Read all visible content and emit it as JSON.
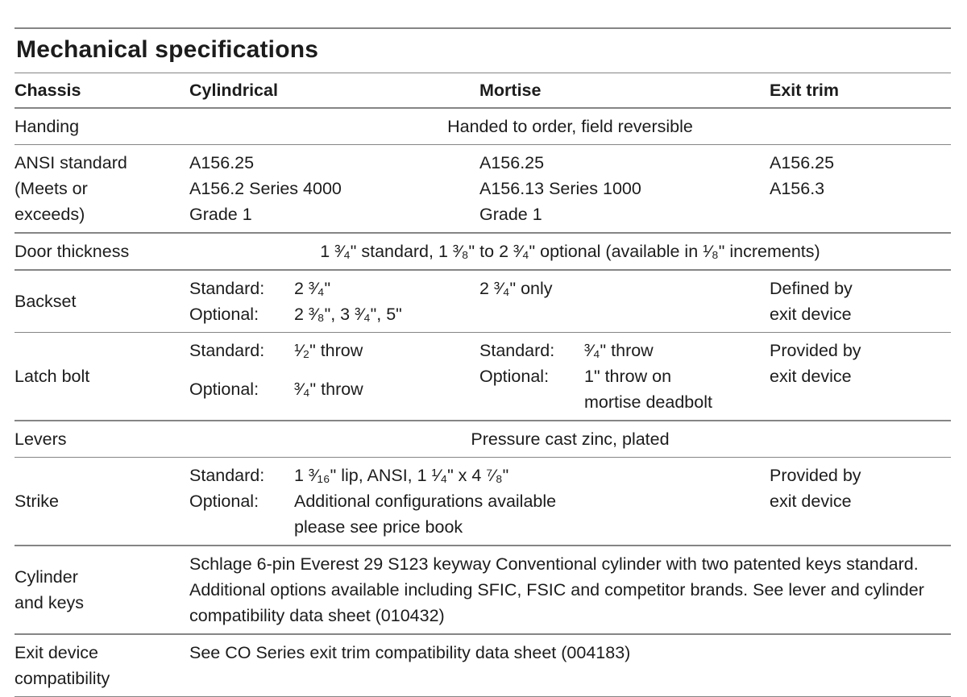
{
  "title": "Mechanical specifications",
  "columns": {
    "chassis": "Chassis",
    "cylindrical": "Cylindrical",
    "mortise": "Mortise",
    "exit_trim": "Exit trim"
  },
  "rows": {
    "handing": {
      "label": "Handing",
      "value": "Handed to order, field reversible"
    },
    "ansi_standard": {
      "label_lines": [
        "ANSI standard",
        "(Meets or",
        "exceeds)"
      ],
      "cylindrical": [
        "A156.25",
        "A156.2 Series 4000",
        "Grade 1"
      ],
      "mortise": [
        "A156.25",
        "A156.13 Series 1000",
        "Grade 1"
      ],
      "exit_trim": [
        "A156.25",
        "A156.3"
      ]
    },
    "door_thickness": {
      "label": "Door thickness",
      "value": "1 ³⁄₄\" standard, 1 ³⁄₈\" to 2 ³⁄₄\" optional (available in ¹⁄₈\" increments)"
    },
    "backset": {
      "label": "Backset",
      "cylindrical": [
        {
          "prefix": "Standard:",
          "text": "2 ³⁄₄\""
        },
        {
          "prefix": "Optional:",
          "text": "2 ³⁄₈\", 3 ³⁄₄\", 5\""
        }
      ],
      "mortise": "2 ³⁄₄\" only",
      "exit_trim": [
        "Defined by",
        "exit device"
      ]
    },
    "latch_bolt": {
      "label": "Latch bolt",
      "cylindrical": [
        {
          "prefix": "Standard:",
          "text": "¹⁄₂\" throw"
        },
        {
          "prefix": "Optional:",
          "text": "³⁄₄\" throw"
        }
      ],
      "mortise": [
        {
          "prefix": "Standard:",
          "text": "³⁄₄\" throw"
        },
        {
          "prefix": "Optional:",
          "text": "1\" throw on"
        },
        {
          "prefix": "",
          "text": "mortise deadbolt"
        }
      ],
      "exit_trim": [
        "Provided by",
        "exit device"
      ]
    },
    "levers": {
      "label": "Levers",
      "value": "Pressure cast zinc, plated"
    },
    "strike": {
      "label": "Strike",
      "details": [
        {
          "prefix": "Standard:",
          "text": "1 ³⁄₁₆\" lip, ANSI, 1 ¹⁄₄\" x 4 ⁷⁄₈\""
        },
        {
          "prefix": "Optional:",
          "text": "Additional configurations available"
        },
        {
          "prefix": "",
          "text": "please see price book"
        }
      ],
      "exit_trim": [
        "Provided by",
        "exit device"
      ]
    },
    "cylinder_and_keys": {
      "label_lines": [
        "Cylinder",
        "and keys"
      ],
      "value": "Schlage 6-pin Everest 29 S123 keyway Conventional cylinder with two patented keys standard. Additional options available including SFIC, FSIC and competitor brands. See lever and cylinder compatibility data sheet (010432)"
    },
    "exit_device_compatibility": {
      "label_lines": [
        "Exit device",
        "compatibility"
      ],
      "value": "See CO Series exit trim compatibility data sheet (004183)"
    }
  },
  "colors": {
    "text": "#1c1c1c",
    "rule": "#858585"
  }
}
